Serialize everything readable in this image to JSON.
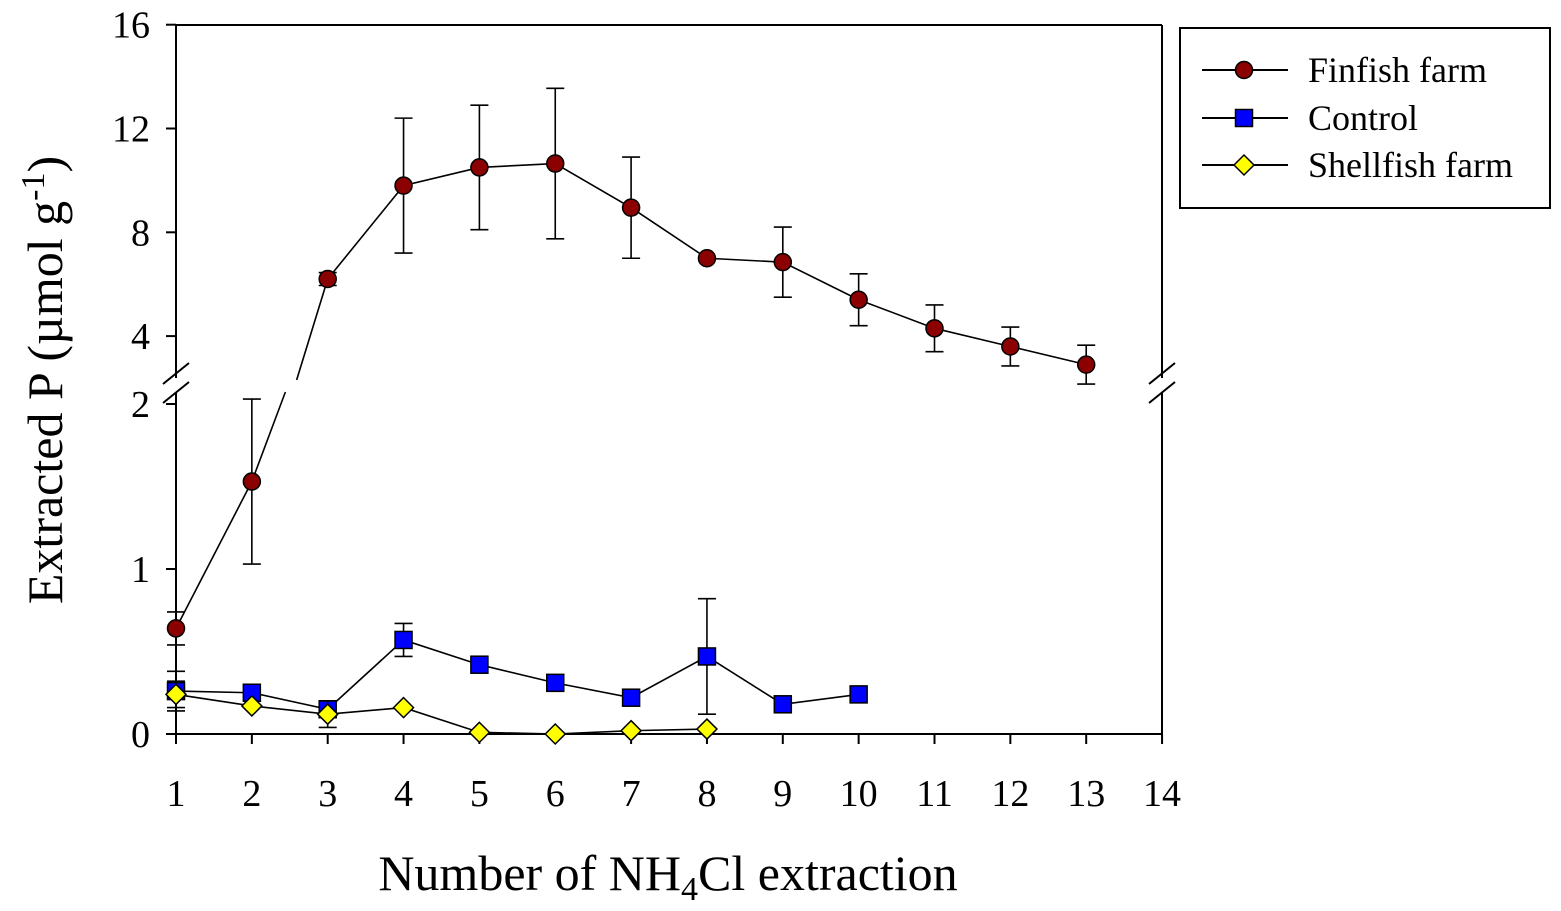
{
  "chart_data": {
    "type": "line",
    "title": "",
    "xlabel": "Number of NH",
    "xlabel_sub": "4",
    "xlabel_end": "Cl extraction",
    "ylabel": "Extracted P (µmol g",
    "ylabel_sup": "-1",
    "ylabel_end": ")",
    "xlim": [
      1,
      14
    ],
    "xticks": [
      "1",
      "2",
      "3",
      "4",
      "5",
      "6",
      "7",
      "8",
      "9",
      "10",
      "11",
      "12",
      "13",
      "14"
    ],
    "y_axis_break": {
      "lower_range": [
        0,
        2
      ],
      "upper_range": [
        2.6,
        16
      ]
    },
    "yticks_lower": [
      "0",
      "1",
      "2"
    ],
    "yticks_upper": [
      "4",
      "8",
      "12",
      "16"
    ],
    "legend_position": "top-right",
    "series": [
      {
        "name": "Finfish farm",
        "marker": "circle",
        "color": "#8b0000",
        "x": [
          1,
          2,
          4,
          5,
          6,
          7,
          8,
          9,
          10,
          11,
          12,
          13
        ],
        "values": [
          0.64,
          1.53,
          9.8,
          10.5,
          10.65,
          8.95,
          7.0,
          6.85,
          5.4,
          4.3,
          3.6,
          2.9
        ],
        "error": [
          0.1,
          0.5,
          2.6,
          2.4,
          2.9,
          1.95,
          0.0,
          1.35,
          1.0,
          0.9,
          0.75,
          0.75
        ],
        "offscale_point": {
          "x": 3,
          "value": 6.2,
          "error": 0.25
        }
      },
      {
        "name": "Control",
        "marker": "square",
        "color": "#0000ff",
        "x": [
          1,
          2,
          3,
          4,
          5,
          6,
          7,
          8,
          9,
          10
        ],
        "values": [
          0.26,
          0.25,
          0.15,
          0.57,
          0.42,
          0.31,
          0.22,
          0.47,
          0.18,
          0.24
        ],
        "error": [
          0.12,
          0.0,
          0.0,
          0.1,
          0.0,
          0.0,
          0.0,
          0.35,
          0.0,
          0.0
        ]
      },
      {
        "name": "Shellfish farm",
        "marker": "diamond",
        "color": "#ffff00",
        "x": [
          1,
          2,
          3,
          4,
          5,
          6,
          7,
          8
        ],
        "values": [
          0.24,
          0.17,
          0.12,
          0.16,
          0.01,
          0.0,
          0.02,
          0.03
        ],
        "error": [
          0.08,
          0.0,
          0.08,
          0.0,
          0.0,
          0.0,
          0.0,
          0.0
        ]
      }
    ]
  }
}
